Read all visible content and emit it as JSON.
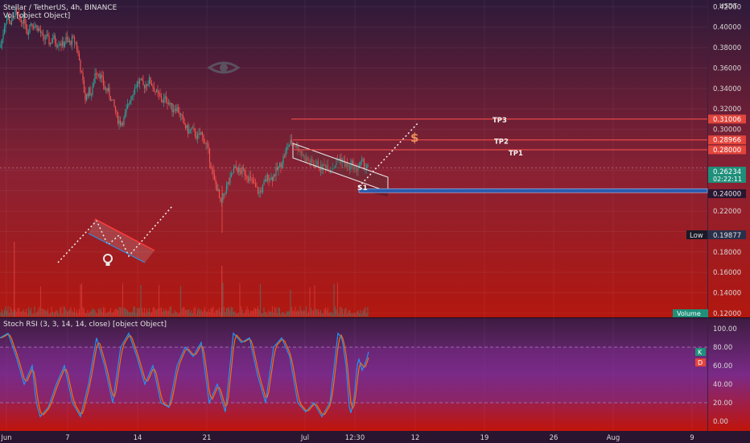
{
  "header": {
    "symbol_line": "Stellar / TetherUS, 4h, BINANCE",
    "vol_line": "Vol [object Object]",
    "currency": "USDT"
  },
  "colors": {
    "bg_top": "#2e1a3a",
    "bg_mid": "#8a2133",
    "bg_bottom": "#b3170f",
    "up": "#26a69a",
    "down": "#ef5350",
    "level_red": "#f04b4b",
    "level_label_bg": "#e2453c",
    "price_badge": "#1f8f7a",
    "blue_zone": "#2a5cad",
    "rsi_band": "#7a2a88",
    "k_line": "#2196f3",
    "d_line": "#ff6d00"
  },
  "price_axis": {
    "ticks": [
      {
        "value": 0.42,
        "label": "0.42000"
      },
      {
        "value": 0.4,
        "label": "0.40000"
      },
      {
        "value": 0.38,
        "label": "0.38000"
      },
      {
        "value": 0.36,
        "label": "0.36000"
      },
      {
        "value": 0.34,
        "label": "0.34000"
      },
      {
        "value": 0.32,
        "label": "0.32000"
      },
      {
        "value": 0.3,
        "label": "0.30000"
      },
      {
        "value": 0.22,
        "label": "0.22000"
      },
      {
        "value": 0.18,
        "label": "0.18000"
      },
      {
        "value": 0.16,
        "label": "0.16000"
      },
      {
        "value": 0.14,
        "label": "0.14000"
      },
      {
        "value": 0.12,
        "label": "0.12000"
      }
    ],
    "range": [
      0.116,
      0.425
    ],
    "hidden_gridlines": [
      0.28,
      0.26,
      0.24,
      0.2
    ]
  },
  "levels": [
    {
      "name": "TP3",
      "price": 0.31006,
      "label": "0.31006"
    },
    {
      "name": "TP2",
      "price": 0.28966,
      "label": "0.28966"
    },
    {
      "name": "TP1",
      "price": 0.28,
      "label": "0.28000"
    }
  ],
  "current_price": {
    "value": 0.26234,
    "label": "0.26234",
    "countdown": "02:22:11"
  },
  "stop_level": {
    "label": "0.24000",
    "price": 0.24
  },
  "low_marker": {
    "label": "Low",
    "value": "0.19877"
  },
  "volume_badge": "Volume",
  "annotations": {
    "s1": "S1",
    "dollar": "$"
  },
  "rsi": {
    "title": "Stoch RSI (3, 3, 14, 14, close) [object Object]",
    "ticks": [
      "100.00",
      "80.00",
      "60.00",
      "40.00",
      "20.00",
      "0.00"
    ],
    "k_label": "K",
    "d_label": "D"
  },
  "time_axis": [
    "Jun",
    "7",
    "14",
    "21",
    "Jul",
    "12:30",
    "12",
    "19",
    "26",
    "Aug",
    "9"
  ],
  "chart_data": {
    "type": "candlestick",
    "title": "Stellar / TetherUS, 4h, BINANCE",
    "ylim": [
      0.116,
      0.425
    ],
    "xlabels": [
      "Jun",
      "7",
      "14",
      "21",
      "Jul",
      "12:30",
      "12",
      "19",
      "26",
      "Aug",
      "9"
    ],
    "close_path": [
      [
        0,
        0.38
      ],
      [
        3,
        0.39
      ],
      [
        6,
        0.405
      ],
      [
        10,
        0.41
      ],
      [
        14,
        0.402
      ],
      [
        18,
        0.415
      ],
      [
        22,
        0.41
      ],
      [
        26,
        0.405
      ],
      [
        30,
        0.41
      ],
      [
        34,
        0.395
      ],
      [
        38,
        0.405
      ],
      [
        42,
        0.402
      ],
      [
        46,
        0.4
      ],
      [
        50,
        0.395
      ],
      [
        54,
        0.388
      ],
      [
        58,
        0.39
      ],
      [
        62,
        0.384
      ],
      [
        66,
        0.39
      ],
      [
        70,
        0.384
      ],
      [
        74,
        0.386
      ],
      [
        78,
        0.382
      ],
      [
        82,
        0.388
      ],
      [
        86,
        0.384
      ],
      [
        90,
        0.388
      ],
      [
        94,
        0.385
      ],
      [
        98,
        0.37
      ],
      [
        102,
        0.35
      ],
      [
        106,
        0.33
      ],
      [
        110,
        0.338
      ],
      [
        114,
        0.334
      ],
      [
        118,
        0.355
      ],
      [
        122,
        0.357
      ],
      [
        126,
        0.35
      ],
      [
        130,
        0.34
      ],
      [
        134,
        0.338
      ],
      [
        138,
        0.33
      ],
      [
        142,
        0.322
      ],
      [
        146,
        0.31
      ],
      [
        150,
        0.306
      ],
      [
        154,
        0.31
      ],
      [
        158,
        0.32
      ],
      [
        162,
        0.332
      ],
      [
        166,
        0.338
      ],
      [
        170,
        0.345
      ],
      [
        174,
        0.347
      ],
      [
        178,
        0.342
      ],
      [
        182,
        0.345
      ],
      [
        186,
        0.348
      ],
      [
        190,
        0.342
      ],
      [
        194,
        0.336
      ],
      [
        198,
        0.332
      ],
      [
        202,
        0.328
      ],
      [
        206,
        0.33
      ],
      [
        210,
        0.326
      ],
      [
        214,
        0.32
      ],
      [
        218,
        0.322
      ],
      [
        222,
        0.318
      ],
      [
        226,
        0.31
      ],
      [
        230,
        0.303
      ],
      [
        234,
        0.298
      ],
      [
        238,
        0.3
      ],
      [
        242,
        0.296
      ],
      [
        246,
        0.292
      ],
      [
        250,
        0.296
      ],
      [
        254,
        0.288
      ],
      [
        258,
        0.282
      ],
      [
        262,
        0.265
      ],
      [
        266,
        0.25
      ],
      [
        270,
        0.242
      ],
      [
        274,
        0.226
      ],
      [
        278,
        0.236
      ],
      [
        282,
        0.245
      ],
      [
        286,
        0.25
      ],
      [
        290,
        0.26
      ],
      [
        294,
        0.262
      ],
      [
        298,
        0.258
      ],
      [
        302,
        0.26
      ],
      [
        306,
        0.256
      ],
      [
        310,
        0.252
      ],
      [
        314,
        0.248
      ],
      [
        318,
        0.242
      ],
      [
        322,
        0.238
      ],
      [
        326,
        0.242
      ],
      [
        330,
        0.25
      ],
      [
        334,
        0.254
      ],
      [
        338,
        0.252
      ],
      [
        342,
        0.258
      ],
      [
        346,
        0.262
      ],
      [
        350,
        0.268
      ],
      [
        354,
        0.276
      ],
      [
        358,
        0.284
      ],
      [
        362,
        0.288
      ],
      [
        366,
        0.285
      ],
      [
        370,
        0.282
      ],
      [
        374,
        0.278
      ],
      [
        378,
        0.272
      ],
      [
        382,
        0.27
      ],
      [
        386,
        0.268
      ],
      [
        390,
        0.265
      ],
      [
        394,
        0.266
      ],
      [
        398,
        0.262
      ],
      [
        402,
        0.264
      ],
      [
        406,
        0.265
      ],
      [
        410,
        0.262
      ],
      [
        414,
        0.263
      ],
      [
        418,
        0.268
      ],
      [
        422,
        0.272
      ],
      [
        426,
        0.268
      ],
      [
        430,
        0.265
      ],
      [
        434,
        0.262
      ],
      [
        438,
        0.266
      ],
      [
        442,
        0.26
      ],
      [
        446,
        0.264
      ],
      [
        450,
        0.268
      ],
      [
        454,
        0.264
      ],
      [
        458,
        0.262
      ]
    ],
    "stoch_k_anchors": [
      [
        0,
        90
      ],
      [
        10,
        95
      ],
      [
        20,
        70
      ],
      [
        30,
        40
      ],
      [
        40,
        60
      ],
      [
        45,
        20
      ],
      [
        50,
        5
      ],
      [
        60,
        15
      ],
      [
        70,
        40
      ],
      [
        80,
        60
      ],
      [
        90,
        20
      ],
      [
        100,
        5
      ],
      [
        110,
        40
      ],
      [
        120,
        90
      ],
      [
        130,
        60
      ],
      [
        140,
        20
      ],
      [
        150,
        80
      ],
      [
        160,
        95
      ],
      [
        170,
        70
      ],
      [
        180,
        40
      ],
      [
        190,
        60
      ],
      [
        200,
        20
      ],
      [
        210,
        15
      ],
      [
        220,
        60
      ],
      [
        230,
        80
      ],
      [
        240,
        70
      ],
      [
        250,
        85
      ],
      [
        260,
        20
      ],
      [
        270,
        40
      ],
      [
        280,
        10
      ],
      [
        290,
        95
      ],
      [
        300,
        85
      ],
      [
        310,
        90
      ],
      [
        320,
        50
      ],
      [
        330,
        20
      ],
      [
        340,
        80
      ],
      [
        350,
        90
      ],
      [
        360,
        70
      ],
      [
        370,
        20
      ],
      [
        380,
        10
      ],
      [
        390,
        20
      ],
      [
        400,
        5
      ],
      [
        410,
        20
      ],
      [
        420,
        95
      ],
      [
        425,
        90
      ],
      [
        430,
        60
      ],
      [
        435,
        5
      ],
      [
        440,
        25
      ],
      [
        445,
        70
      ],
      [
        450,
        55
      ],
      [
        455,
        65
      ],
      [
        458,
        75
      ]
    ]
  }
}
